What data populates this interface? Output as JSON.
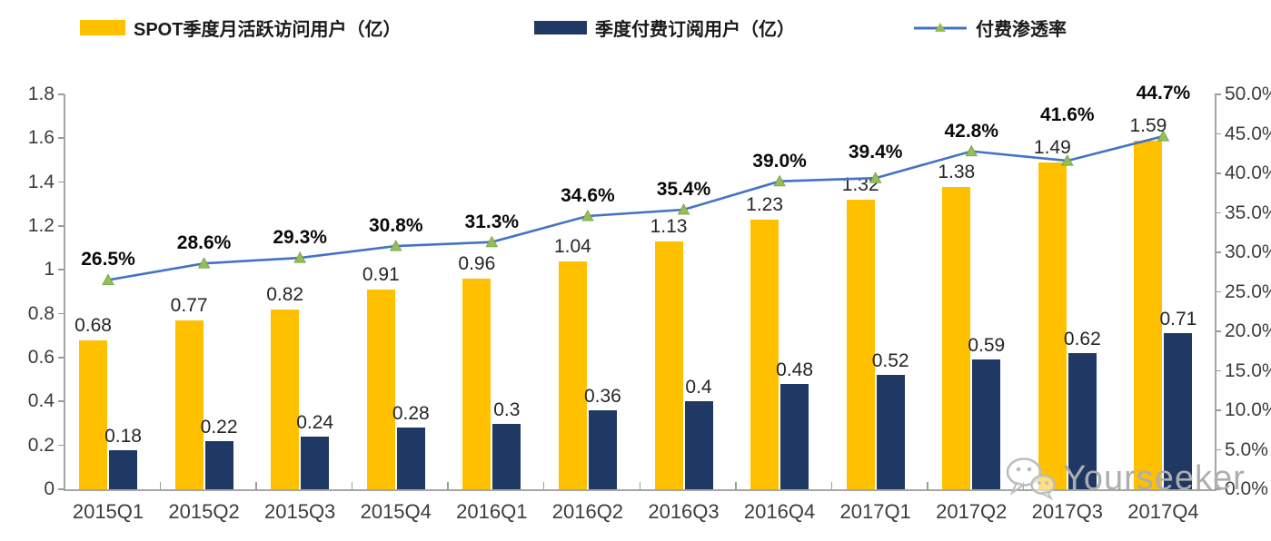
{
  "legend": {
    "items": [
      {
        "label": "SPOT季度月活跃访问用户（亿）",
        "color": "#FFC000"
      },
      {
        "label": "季度付费订阅用户（亿）",
        "color": "#1F3864"
      },
      {
        "label": "付费渗透率",
        "color": "#4472C4",
        "marker_color": "#9BBB59",
        "marker_edge": "#70AD47"
      }
    ]
  },
  "chart_data": {
    "type": "bar",
    "subtype": "grouped-bars-with-line-overlay-dual-axis",
    "title": "",
    "categories": [
      "2015Q1",
      "2015Q2",
      "2015Q3",
      "2015Q4",
      "2016Q1",
      "2016Q2",
      "2016Q3",
      "2016Q4",
      "2017Q1",
      "2017Q2",
      "2017Q3",
      "2017Q4"
    ],
    "series": [
      {
        "name": "SPOT季度月活跃访问用户（亿）",
        "type": "bar",
        "axis": "left",
        "color": "#FFC000",
        "values": [
          0.68,
          0.77,
          0.82,
          0.91,
          0.96,
          1.04,
          1.13,
          1.23,
          1.32,
          1.38,
          1.49,
          1.59
        ],
        "labels": [
          "0.68",
          "0.77",
          "0.82",
          "0.91",
          "0.96",
          "1.04",
          "1.13",
          "1.23",
          "1.32",
          "1.38",
          "1.49",
          "1.59"
        ]
      },
      {
        "name": "季度付费订阅用户（亿）",
        "type": "bar",
        "axis": "left",
        "color": "#1F3864",
        "values": [
          0.18,
          0.22,
          0.24,
          0.28,
          0.3,
          0.36,
          0.4,
          0.48,
          0.52,
          0.59,
          0.62,
          0.71
        ],
        "labels": [
          "0.18",
          "0.22",
          "0.24",
          "0.28",
          "0.3",
          "0.36",
          "0.4",
          "0.48",
          "0.52",
          "0.59",
          "0.62",
          "0.71"
        ]
      },
      {
        "name": "付费渗透率",
        "type": "line",
        "axis": "right",
        "color": "#4472C4",
        "marker": "triangle",
        "marker_color": "#9BBB59",
        "marker_edge": "#70AD47",
        "values": [
          26.5,
          28.6,
          29.3,
          30.8,
          31.3,
          34.6,
          35.4,
          39.0,
          39.4,
          42.8,
          41.6,
          44.7
        ],
        "labels": [
          "26.5%",
          "28.6%",
          "29.3%",
          "30.8%",
          "31.3%",
          "34.6%",
          "35.4%",
          "39.0%",
          "39.4%",
          "42.8%",
          "41.6%",
          "44.7%"
        ]
      }
    ],
    "left_axis": {
      "min": 0,
      "max": 1.8,
      "step": 0.2,
      "tick_labels": [
        "0",
        "0.2",
        "0.4",
        "0.6",
        "0.8",
        "1",
        "1.2",
        "1.4",
        "1.6",
        "1.8"
      ]
    },
    "right_axis": {
      "min": 0,
      "max": 50,
      "step": 5,
      "tick_labels": [
        "0.0%",
        "5.0%",
        "10.0%",
        "15.0%",
        "20.0%",
        "25.0%",
        "30.0%",
        "35.0%",
        "40.0%",
        "45.0%",
        "50.0%"
      ]
    },
    "grid": false,
    "legend_position": "top"
  },
  "watermark": {
    "text": "Yourseeker"
  }
}
